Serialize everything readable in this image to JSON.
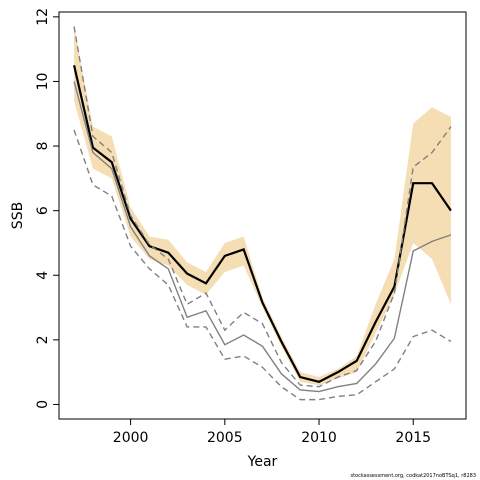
{
  "chart_data": {
    "type": "line",
    "xlabel": "Year",
    "ylabel": "SSB",
    "xlim": [
      1996.2,
      2017.8
    ],
    "ylim": [
      -0.45,
      12.15
    ],
    "x_ticks": [
      2000,
      2005,
      2010,
      2015
    ],
    "y_ticks": [
      0,
      2,
      4,
      6,
      8,
      10,
      12
    ],
    "grid": false,
    "legend": "none",
    "footnote": "stockassessment.org, codkat2017noBTSq1, r8283",
    "x": [
      1997,
      1998,
      1999,
      2000,
      2001,
      2002,
      2003,
      2004,
      2005,
      2006,
      2007,
      2008,
      2009,
      2010,
      2011,
      2012,
      2013,
      2014,
      2015,
      2016,
      2017
    ],
    "series": [
      {
        "role": "ci-band",
        "color": "#F5DEB3",
        "lower": [
          9.4,
          7.3,
          7.0,
          5.2,
          4.5,
          4.3,
          3.7,
          3.4,
          4.1,
          4.3,
          3.0,
          1.8,
          0.7,
          0.6,
          0.8,
          1.0,
          2.2,
          3.4,
          5.0,
          4.5,
          3.1
        ],
        "upper": [
          11.7,
          8.6,
          8.3,
          6.1,
          5.2,
          5.1,
          4.4,
          4.1,
          5.0,
          5.2,
          3.3,
          2.1,
          1.0,
          0.85,
          1.1,
          1.5,
          3.1,
          4.5,
          8.7,
          9.2,
          8.9
        ]
      },
      {
        "role": "estimate",
        "color": "#000000",
        "values": [
          10.5,
          7.95,
          7.5,
          5.75,
          4.9,
          4.7,
          4.05,
          3.75,
          4.6,
          4.8,
          3.15,
          1.95,
          0.85,
          0.7,
          1.0,
          1.35,
          2.55,
          3.65,
          6.85,
          6.85,
          6.0
        ]
      },
      {
        "role": "comparison-estimate",
        "color": "#808080",
        "values": [
          10.0,
          7.8,
          7.3,
          5.5,
          4.6,
          4.2,
          2.7,
          2.9,
          1.85,
          2.15,
          1.8,
          0.95,
          0.45,
          0.4,
          0.55,
          0.65,
          1.25,
          2.05,
          4.75,
          5.05,
          5.25
        ]
      },
      {
        "role": "comparison-upper",
        "color": "#808080",
        "dashed": true,
        "values": [
          11.7,
          8.3,
          7.8,
          5.85,
          4.95,
          4.5,
          3.1,
          3.45,
          2.3,
          2.85,
          2.5,
          1.3,
          0.6,
          0.55,
          0.85,
          1.05,
          1.95,
          3.45,
          7.35,
          7.8,
          8.6
        ]
      },
      {
        "role": "comparison-lower",
        "color": "#808080",
        "dashed": true,
        "values": [
          8.5,
          6.8,
          6.45,
          4.9,
          4.2,
          3.7,
          2.4,
          2.4,
          1.4,
          1.5,
          1.15,
          0.55,
          0.15,
          0.15,
          0.25,
          0.3,
          0.7,
          1.1,
          2.1,
          2.3,
          1.95
        ]
      }
    ]
  }
}
